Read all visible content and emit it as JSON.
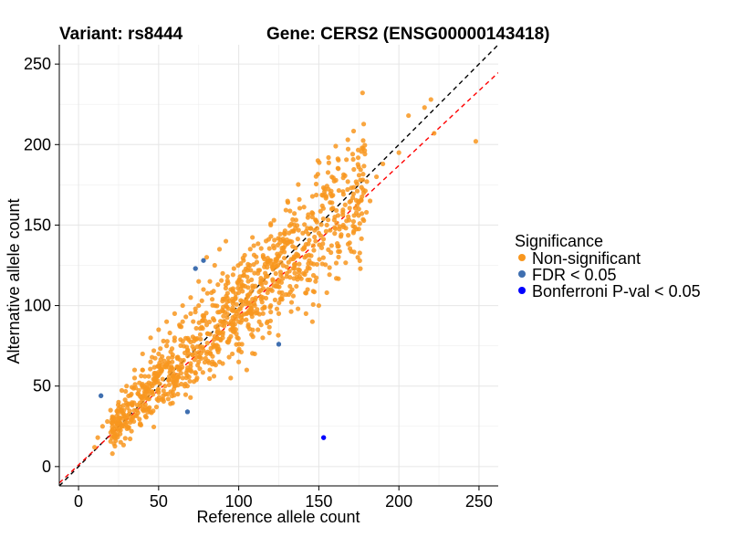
{
  "header": {
    "variant": "Variant: rs8444",
    "gene": "Gene: CERS2 (ENSG00000143418)"
  },
  "chart_data": {
    "type": "scatter",
    "xlabel": "Reference allele count",
    "ylabel": "Alternative allele count",
    "xlim": [
      -12,
      262
    ],
    "ylim": [
      -12,
      262
    ],
    "xticks": [
      0,
      50,
      100,
      150,
      200,
      250
    ],
    "yticks": [
      0,
      50,
      100,
      150,
      200,
      250
    ],
    "grid": true,
    "reference_lines": [
      {
        "name": "identity",
        "slope": 1,
        "intercept": 0,
        "color": "#000000",
        "dash": true
      },
      {
        "name": "fit",
        "slope": 0.93,
        "intercept": 1,
        "color": "#ff0000",
        "dash": true
      }
    ],
    "legend": {
      "title": "Significance",
      "placement": "right",
      "entries": [
        {
          "label": "Non-significant",
          "color": "#f8961e"
        },
        {
          "label": "FDR < 0.05",
          "color": "#3f6fb0"
        },
        {
          "label": "Bonferroni P-val < 0.05",
          "color": "#0000ff"
        }
      ]
    },
    "series": [
      {
        "name": "Non-significant",
        "color": "#f8961e",
        "points": [
          [
            248,
            202
          ],
          [
            220,
            228
          ],
          [
            222,
            207
          ],
          [
            216,
            223
          ],
          [
            206,
            218
          ],
          [
            177,
            198
          ],
          [
            176,
            178
          ],
          [
            200,
            195
          ],
          [
            190,
            188
          ],
          [
            180,
            177
          ],
          [
            178,
            170
          ],
          [
            186,
            180
          ],
          [
            170,
            165
          ],
          [
            165,
            158
          ],
          [
            182,
            165
          ],
          [
            175,
            160
          ],
          [
            160,
            155
          ],
          [
            155,
            150
          ],
          [
            150,
            145
          ],
          [
            148,
            140
          ],
          [
            145,
            148
          ],
          [
            158,
            160
          ],
          [
            162,
            156
          ],
          [
            142,
            138
          ],
          [
            140,
            145
          ],
          [
            146,
            155
          ],
          [
            128,
            140
          ],
          [
            120,
            150
          ],
          [
            122,
            153
          ],
          [
            135,
            130
          ],
          [
            130,
            118
          ],
          [
            138,
            122
          ],
          [
            143,
            110
          ],
          [
            150,
            100
          ],
          [
            155,
            108
          ],
          [
            148,
            115
          ],
          [
            125,
            95
          ],
          [
            120,
            100
          ],
          [
            115,
            80
          ],
          [
            110,
            70
          ],
          [
            105,
            60
          ],
          [
            100,
            65
          ],
          [
            95,
            55
          ],
          [
            118,
            90
          ],
          [
            112,
            85
          ],
          [
            108,
            95
          ],
          [
            102,
            100
          ],
          [
            98,
            105
          ],
          [
            95,
            110
          ],
          [
            90,
            120
          ],
          [
            85,
            125
          ],
          [
            80,
            130
          ],
          [
            92,
            140
          ],
          [
            88,
            135
          ],
          [
            82,
            115
          ],
          [
            78,
            110
          ],
          [
            75,
            100
          ],
          [
            70,
            95
          ],
          [
            65,
            90
          ],
          [
            60,
            80
          ],
          [
            55,
            75
          ],
          [
            50,
            70
          ],
          [
            45,
            65
          ],
          [
            40,
            60
          ],
          [
            35,
            55
          ],
          [
            30,
            50
          ],
          [
            25,
            40
          ],
          [
            20,
            35
          ],
          [
            18,
            28
          ],
          [
            15,
            25
          ],
          [
            12,
            18
          ],
          [
            10,
            12
          ],
          [
            22,
            30
          ],
          [
            28,
            38
          ],
          [
            33,
            45
          ],
          [
            38,
            52
          ],
          [
            42,
            48
          ],
          [
            48,
            55
          ],
          [
            52,
            60
          ],
          [
            58,
            62
          ],
          [
            62,
            68
          ],
          [
            68,
            72
          ],
          [
            72,
            78
          ],
          [
            76,
            82
          ],
          [
            80,
            88
          ],
          [
            84,
            92
          ],
          [
            88,
            96
          ],
          [
            92,
            100
          ],
          [
            96,
            104
          ],
          [
            100,
            108
          ],
          [
            104,
            112
          ],
          [
            108,
            116
          ],
          [
            112,
            120
          ],
          [
            116,
            124
          ],
          [
            120,
            128
          ],
          [
            124,
            132
          ],
          [
            128,
            136
          ],
          [
            132,
            140
          ],
          [
            60,
            50
          ],
          [
            65,
            55
          ],
          [
            70,
            60
          ],
          [
            75,
            65
          ],
          [
            80,
            70
          ],
          [
            85,
            75
          ],
          [
            90,
            80
          ],
          [
            95,
            85
          ],
          [
            100,
            90
          ],
          [
            105,
            95
          ],
          [
            110,
            100
          ],
          [
            115,
            105
          ],
          [
            120,
            110
          ],
          [
            125,
            115
          ],
          [
            130,
            120
          ],
          [
            135,
            125
          ],
          [
            56,
            42
          ],
          [
            62,
            45
          ],
          [
            68,
            50
          ],
          [
            74,
            55
          ],
          [
            82,
            60
          ],
          [
            88,
            65
          ],
          [
            94,
            68
          ],
          [
            100,
            72
          ],
          [
            55,
            90
          ],
          [
            60,
            95
          ],
          [
            65,
            100
          ],
          [
            70,
            105
          ],
          [
            75,
            115
          ],
          [
            50,
            85
          ],
          [
            45,
            80
          ],
          [
            40,
            70
          ],
          [
            35,
            60
          ],
          [
            47,
            72
          ],
          [
            53,
            78
          ],
          [
            57,
            83
          ],
          [
            63,
            88
          ],
          [
            67,
            93
          ],
          [
            73,
            98
          ],
          [
            77,
            103
          ],
          [
            83,
            108
          ],
          [
            87,
            113
          ],
          [
            93,
            118
          ],
          [
            97,
            123
          ],
          [
            103,
            128
          ],
          [
            107,
            125
          ],
          [
            113,
            122
          ],
          [
            117,
            118
          ],
          [
            123,
            112
          ],
          [
            127,
            108
          ],
          [
            133,
            102
          ],
          [
            137,
            98
          ],
          [
            142,
            95
          ],
          [
            146,
            90
          ],
          [
            30,
            30
          ],
          [
            26,
            27
          ],
          [
            40,
            38
          ],
          [
            44,
            42
          ],
          [
            50,
            46
          ],
          [
            54,
            50
          ],
          [
            58,
            54
          ],
          [
            64,
            58
          ],
          [
            70,
            64
          ],
          [
            74,
            68
          ],
          [
            78,
            72
          ],
          [
            84,
            76
          ],
          [
            90,
            82
          ],
          [
            96,
            88
          ],
          [
            102,
            94
          ],
          [
            108,
            98
          ],
          [
            114,
            104
          ],
          [
            118,
            108
          ],
          [
            124,
            114
          ],
          [
            130,
            124
          ],
          [
            136,
            132
          ],
          [
            140,
            135
          ],
          [
            144,
            128
          ],
          [
            138,
            118
          ],
          [
            132,
            112
          ],
          [
            126,
            104
          ],
          [
            120,
            96
          ],
          [
            114,
            88
          ],
          [
            108,
            82
          ],
          [
            102,
            76
          ],
          [
            96,
            70
          ],
          [
            90,
            64
          ]
        ]
      },
      {
        "name": "FDR < 0.05",
        "color": "#3f6fb0",
        "points": [
          [
            14,
            44
          ],
          [
            68,
            34
          ],
          [
            73,
            123
          ],
          [
            78,
            128
          ],
          [
            125,
            76
          ]
        ]
      },
      {
        "name": "Bonferroni P-val < 0.05",
        "color": "#0000ff",
        "points": [
          [
            153,
            18
          ]
        ]
      }
    ]
  }
}
